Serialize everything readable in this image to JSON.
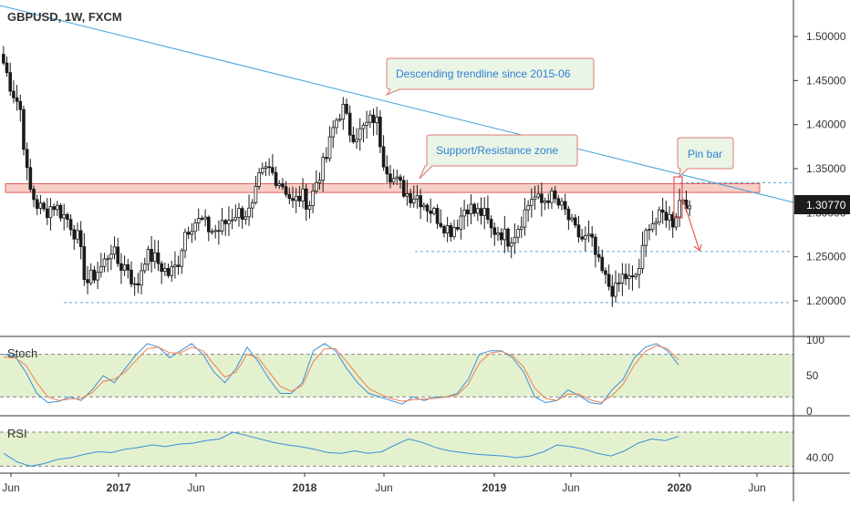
{
  "header": {
    "symbol_title": "GBPUSD, 1W, FXCM"
  },
  "colors": {
    "background": "#ffffff",
    "indicator_zone": "#e4f1cf",
    "candle_body": "#1b1b1b",
    "trendline": "#3ea2d8",
    "support_zone_stroke": "#e05c5c",
    "support_zone_fill": "#f7cfc6",
    "callout_fill": "#eaf5e6",
    "callout_stroke": "#e07878",
    "callout_text": "#2f7fd4",
    "stoch_k": "#3b8fd9",
    "stoch_d": "#f08050",
    "rsi_line": "#3b8fd9",
    "dashed_level": "#5aa8d6",
    "price_badge_bg": "#1b1b1b",
    "price_badge_text": "#ffffff"
  },
  "annotations": {
    "trendline_callout": "Descending trendline since 2015-06",
    "zone_callout": "Support/Resistance zone",
    "pinbar_callout": "Pin bar"
  },
  "price_axis": {
    "ticks": [
      "1.50000",
      "1.45000",
      "1.40000",
      "1.35000",
      "1.30000",
      "1.25000",
      "1.20000"
    ],
    "last_price": "1.30770"
  },
  "time_axis": {
    "ticks": [
      "Jun",
      "2017",
      "Jun",
      "2018",
      "Jun",
      "2019",
      "Jun",
      "2020",
      "Jun"
    ]
  },
  "stoch_panel": {
    "label": "Stoch",
    "ticks": [
      "100",
      "50",
      "0"
    ]
  },
  "rsi_panel": {
    "label": "RSI",
    "ticks": [
      "40.00"
    ]
  },
  "chart_data": [
    {
      "type": "candlestick",
      "title": "GBPUSD, 1W, FXCM",
      "x_ticks": [
        "Jun",
        "2017",
        "Jun",
        "2018",
        "Jun",
        "2019",
        "Jun",
        "2020",
        "Jun"
      ],
      "ylim": [
        1.17,
        1.53
      ],
      "y_ticks": [
        1.5,
        1.45,
        1.4,
        1.35,
        1.3,
        1.25,
        1.2
      ],
      "last_price": 1.3077,
      "anchor_closes": [
        1.47,
        1.44,
        1.42,
        1.33,
        1.31,
        1.3,
        1.31,
        1.3,
        1.29,
        1.27,
        1.22,
        1.23,
        1.24,
        1.26,
        1.24,
        1.24,
        1.21,
        1.25,
        1.25,
        1.24,
        1.23,
        1.24,
        1.28,
        1.29,
        1.29,
        1.28,
        1.28,
        1.29,
        1.3,
        1.3,
        1.3,
        1.34,
        1.35,
        1.34,
        1.33,
        1.31,
        1.32,
        1.31,
        1.34,
        1.36,
        1.4,
        1.42,
        1.39,
        1.39,
        1.4,
        1.41,
        1.36,
        1.34,
        1.33,
        1.32,
        1.32,
        1.31,
        1.3,
        1.29,
        1.28,
        1.29,
        1.31,
        1.3,
        1.3,
        1.28,
        1.28,
        1.27,
        1.28,
        1.3,
        1.32,
        1.31,
        1.32,
        1.31,
        1.3,
        1.28,
        1.27,
        1.27,
        1.24,
        1.22,
        1.21,
        1.23,
        1.22,
        1.24,
        1.29,
        1.29,
        1.3,
        1.29,
        1.32,
        1.31
      ],
      "support_resistance_zone": [
        1.323,
        1.333
      ],
      "dashed_levels": [
        1.334,
        1.256,
        1.198
      ],
      "trendline": [
        {
          "date": "2016-05",
          "price": 1.53
        },
        {
          "date": "2020-06",
          "price": 1.307
        }
      ]
    },
    {
      "type": "line",
      "title": "Stoch",
      "ylim": [
        0,
        100
      ],
      "y_ticks": [
        100,
        50,
        0
      ],
      "dashed_levels": [
        80,
        20
      ],
      "series": [
        {
          "values": [
            80,
            78,
            55,
            25,
            12,
            14,
            20,
            15,
            30,
            50,
            40,
            60,
            80,
            95,
            90,
            75,
            85,
            95,
            80,
            55,
            40,
            60,
            90,
            70,
            45,
            25,
            25,
            40,
            85,
            95,
            85,
            60,
            40,
            25,
            20,
            15,
            10,
            20,
            15,
            20,
            20,
            25,
            45,
            80,
            85,
            85,
            75,
            55,
            20,
            12,
            15,
            30,
            22,
            12,
            10,
            30,
            45,
            75,
            90,
            95,
            85,
            65
          ]
        },
        {
          "values": [
            76,
            75,
            65,
            40,
            20,
            15,
            17,
            18,
            26,
            42,
            45,
            55,
            72,
            88,
            90,
            82,
            82,
            90,
            85,
            66,
            48,
            55,
            80,
            75,
            55,
            35,
            28,
            36,
            70,
            88,
            88,
            70,
            50,
            32,
            24,
            18,
            14,
            16,
            17,
            18,
            20,
            23,
            38,
            68,
            82,
            84,
            78,
            62,
            32,
            18,
            15,
            24,
            24,
            16,
            12,
            22,
            38,
            65,
            84,
            92,
            88,
            72
          ]
        }
      ]
    },
    {
      "type": "line",
      "title": "RSI",
      "y_ticks": [
        40
      ],
      "ylim": [
        25,
        85
      ],
      "dashed_levels": [
        70,
        30
      ],
      "series": [
        {
          "values": [
            45,
            35,
            30,
            33,
            38,
            40,
            44,
            47,
            46,
            50,
            52,
            55,
            53,
            56,
            57,
            60,
            62,
            70,
            66,
            62,
            58,
            55,
            53,
            50,
            46,
            45,
            48,
            45,
            47,
            55,
            62,
            58,
            52,
            48,
            46,
            44,
            43,
            42,
            40,
            42,
            47,
            55,
            53,
            50,
            45,
            42,
            48,
            57,
            62,
            60,
            65
          ]
        }
      ]
    }
  ]
}
